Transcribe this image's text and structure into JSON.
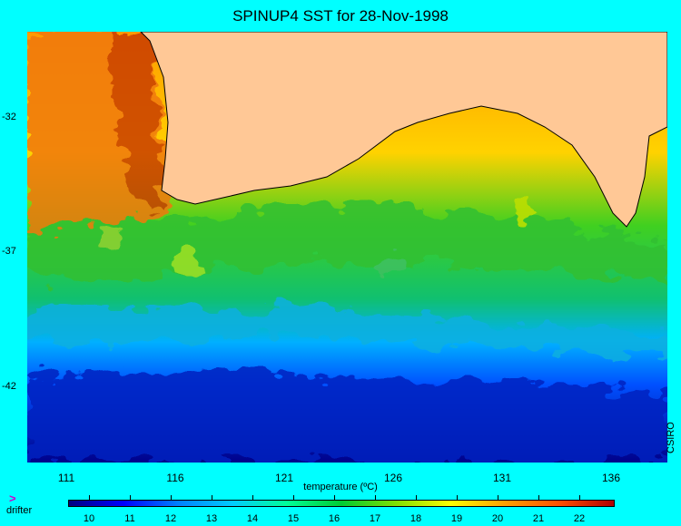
{
  "title": "SPINUP4 SST for 28-Nov-1998",
  "lat_labels": [
    "-32",
    "-37",
    "-42"
  ],
  "lon_labels": [
    "111",
    "116",
    "121",
    "126",
    "131",
    "136"
  ],
  "colorbar": {
    "label": "temperature (ºC)",
    "ticks": [
      "10",
      "11",
      "12",
      "13",
      "14",
      "15",
      "16",
      "17",
      "18",
      "19",
      "20",
      "21",
      "22"
    ]
  },
  "legend": {
    "drifter_icon": ">",
    "drifter_label": "drifter"
  },
  "credit": "CSIRO",
  "colors": {
    "background": "#00ffff",
    "land": "#ffc896",
    "warm": "#e06000",
    "cold": "#00007f"
  }
}
